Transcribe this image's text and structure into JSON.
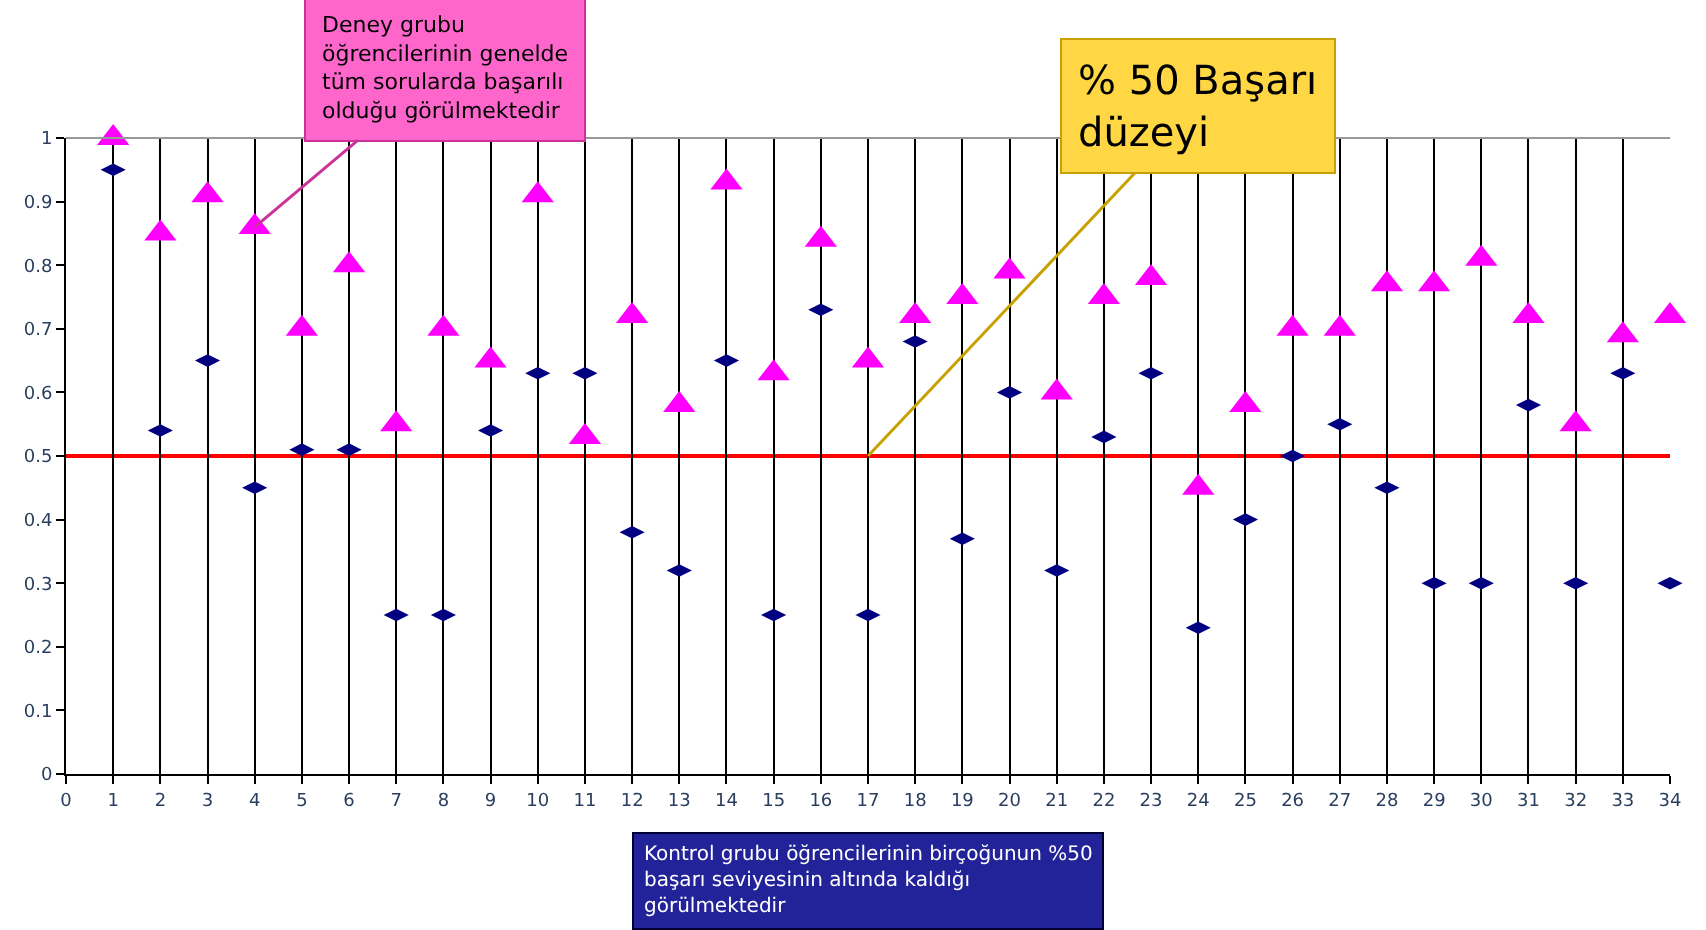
{
  "chart_data": {
    "type": "scatter",
    "x": [
      1,
      2,
      3,
      4,
      5,
      6,
      7,
      8,
      9,
      10,
      11,
      12,
      13,
      14,
      15,
      16,
      17,
      18,
      19,
      20,
      21,
      22,
      23,
      24,
      25,
      26,
      27,
      28,
      29,
      30,
      31,
      32,
      33,
      34
    ],
    "series": [
      {
        "color": "#ff00ff",
        "marker": "triangle",
        "values": [
          1.0,
          0.85,
          0.91,
          0.86,
          0.7,
          0.8,
          0.55,
          0.7,
          0.65,
          0.91,
          0.53,
          0.72,
          0.58,
          0.93,
          0.63,
          0.84,
          0.65,
          0.72,
          0.75,
          0.79,
          0.6,
          0.75,
          0.78,
          0.45,
          0.58,
          0.7,
          0.7,
          0.77,
          0.77,
          0.81,
          0.72,
          0.55,
          0.69,
          0.72
        ]
      },
      {
        "color": "#000080",
        "marker": "diamond",
        "values": [
          0.95,
          0.54,
          0.65,
          0.45,
          0.51,
          0.51,
          0.25,
          0.25,
          0.54,
          0.63,
          0.63,
          0.38,
          0.32,
          0.65,
          0.25,
          0.73,
          0.25,
          0.68,
          0.37,
          0.6,
          0.32,
          0.53,
          0.63,
          0.23,
          0.4,
          0.5,
          0.55,
          0.45,
          0.3,
          0.3,
          0.58,
          0.3,
          0.63,
          0.3
        ]
      }
    ],
    "xlim": [
      0,
      34
    ],
    "xticks": [
      0,
      1,
      2,
      3,
      4,
      5,
      6,
      7,
      8,
      9,
      10,
      11,
      12,
      13,
      14,
      15,
      16,
      17,
      18,
      19,
      20,
      21,
      22,
      23,
      24,
      25,
      26,
      27,
      28,
      29,
      30,
      31,
      32,
      33,
      34
    ],
    "ylim": [
      0,
      1
    ],
    "yticks": [
      0,
      0.1,
      0.2,
      0.3,
      0.4,
      0.5,
      0.6,
      0.7,
      0.8,
      0.9,
      1
    ],
    "grid": "x",
    "ref_lines": [
      {
        "axis": "y",
        "value": 0.5,
        "color": "#ff0000"
      }
    ],
    "annotations": [
      {
        "text": "Deney grubu öğrencilerinin genelde tüm sorularda başarılı olduğu görülmektedir",
        "x": 4,
        "y": 0.86
      },
      {
        "text": "% 50 Başarı düzeyi",
        "x": 17,
        "y": 0.5
      },
      "Kontrol grubu öğrencilerinin birçoğunun %50 başarı seviyesinin altında kaldığı görülmektedir"
    ]
  }
}
